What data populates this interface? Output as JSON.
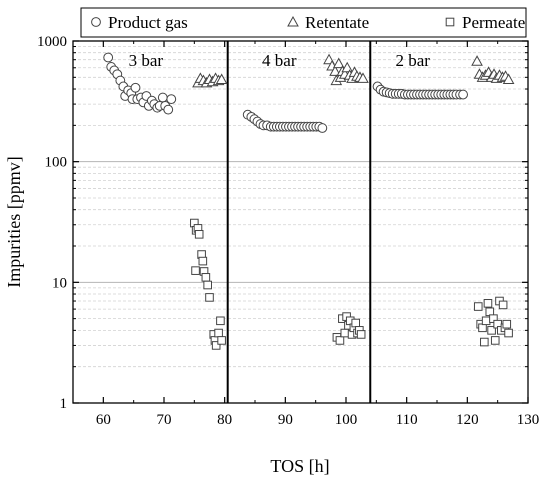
{
  "chart_data": {
    "type": "scatter",
    "xlabel": "TOS [h]",
    "ylabel": "Impurities [ppmv]",
    "xlim": [
      55,
      130
    ],
    "ylim": [
      1,
      1000
    ],
    "y_scale": "log",
    "x_ticks": [
      60,
      70,
      80,
      90,
      100,
      110,
      120,
      130
    ],
    "y_ticks": [
      {
        "value": 1,
        "label": "1"
      },
      {
        "value": 10,
        "label": "10"
      },
      {
        "value": 100,
        "label": "100"
      },
      {
        "value": 1000,
        "label": "1000"
      }
    ],
    "legend": {
      "position": "top",
      "entries": [
        {
          "series": "Product gas",
          "marker": "circle"
        },
        {
          "series": "Retentate",
          "marker": "triangle"
        },
        {
          "series": "Permeate",
          "marker": "square"
        }
      ]
    },
    "grid": "major horizontal lines and dashed minor horizontal lines",
    "separators_x": [
      80.5,
      104
    ],
    "regions": [
      {
        "label": "3 bar",
        "x": 67
      },
      {
        "label": "4 bar",
        "x": 89
      },
      {
        "label": "2 bar",
        "x": 111
      }
    ],
    "series": [
      {
        "name": "Product gas",
        "marker": "circle",
        "points": [
          [
            60.8,
            730
          ],
          [
            61.3,
            610
          ],
          [
            61.8,
            570
          ],
          [
            62.3,
            530
          ],
          [
            62.8,
            470
          ],
          [
            63.3,
            420
          ],
          [
            63.6,
            350
          ],
          [
            64.1,
            390
          ],
          [
            64.6,
            370
          ],
          [
            64.8,
            330
          ],
          [
            65.3,
            410
          ],
          [
            65.6,
            330
          ],
          [
            66.2,
            340
          ],
          [
            66.6,
            310
          ],
          [
            67.1,
            350
          ],
          [
            67.5,
            290
          ],
          [
            68.0,
            320
          ],
          [
            68.4,
            300
          ],
          [
            68.9,
            280
          ],
          [
            69.3,
            290
          ],
          [
            69.8,
            340
          ],
          [
            70.2,
            290
          ],
          [
            70.7,
            270
          ],
          [
            71.2,
            330
          ],
          [
            83.8,
            245
          ],
          [
            84.4,
            235
          ],
          [
            84.9,
            225
          ],
          [
            85.4,
            215
          ],
          [
            85.9,
            205
          ],
          [
            86.4,
            200
          ],
          [
            87.0,
            200
          ],
          [
            87.6,
            195
          ],
          [
            88.1,
            195
          ],
          [
            88.6,
            195
          ],
          [
            89.1,
            195
          ],
          [
            89.6,
            195
          ],
          [
            90.1,
            195
          ],
          [
            90.6,
            195
          ],
          [
            91.1,
            195
          ],
          [
            91.6,
            195
          ],
          [
            92.1,
            195
          ],
          [
            92.6,
            195
          ],
          [
            93.1,
            195
          ],
          [
            93.6,
            195
          ],
          [
            94.1,
            195
          ],
          [
            94.6,
            195
          ],
          [
            95.1,
            195
          ],
          [
            95.6,
            195
          ],
          [
            96.1,
            190
          ],
          [
            105.2,
            420
          ],
          [
            105.7,
            395
          ],
          [
            106.2,
            380
          ],
          [
            106.7,
            375
          ],
          [
            107.2,
            370
          ],
          [
            107.7,
            365
          ],
          [
            108.2,
            365
          ],
          [
            108.7,
            365
          ],
          [
            109.2,
            365
          ],
          [
            109.7,
            360
          ],
          [
            110.2,
            360
          ],
          [
            110.7,
            360
          ],
          [
            111.2,
            360
          ],
          [
            111.7,
            360
          ],
          [
            112.2,
            360
          ],
          [
            112.7,
            360
          ],
          [
            113.2,
            360
          ],
          [
            113.7,
            360
          ],
          [
            114.2,
            360
          ],
          [
            114.7,
            360
          ],
          [
            115.2,
            360
          ],
          [
            115.7,
            360
          ],
          [
            116.2,
            360
          ],
          [
            116.7,
            360
          ],
          [
            117.2,
            360
          ],
          [
            117.7,
            360
          ],
          [
            118.2,
            360
          ],
          [
            118.8,
            360
          ],
          [
            119.3,
            360
          ]
        ]
      },
      {
        "name": "Retentate",
        "marker": "triangle",
        "points": [
          [
            75.6,
            450
          ],
          [
            76.0,
            490
          ],
          [
            76.5,
            470
          ],
          [
            77.0,
            450
          ],
          [
            77.5,
            480
          ],
          [
            78.0,
            460
          ],
          [
            78.5,
            490
          ],
          [
            79.0,
            470
          ],
          [
            79.5,
            480
          ],
          [
            97.2,
            700
          ],
          [
            97.7,
            620
          ],
          [
            98.2,
            560
          ],
          [
            98.4,
            470
          ],
          [
            98.8,
            650
          ],
          [
            99.1,
            500
          ],
          [
            99.4,
            560
          ],
          [
            99.8,
            530
          ],
          [
            100.2,
            600
          ],
          [
            100.6,
            520
          ],
          [
            101.0,
            490
          ],
          [
            101.4,
            550
          ],
          [
            101.8,
            510
          ],
          [
            102.3,
            500
          ],
          [
            102.8,
            490
          ],
          [
            121.6,
            680
          ],
          [
            122.0,
            530
          ],
          [
            122.5,
            500
          ],
          [
            123.0,
            520
          ],
          [
            123.5,
            550
          ],
          [
            124.0,
            500
          ],
          [
            124.4,
            530
          ],
          [
            124.8,
            490
          ],
          [
            125.3,
            520
          ],
          [
            125.8,
            500
          ],
          [
            126.3,
            510
          ],
          [
            126.8,
            480
          ]
        ]
      },
      {
        "name": "Permeate",
        "marker": "square",
        "points": [
          [
            75.0,
            31
          ],
          [
            75.3,
            27
          ],
          [
            75.6,
            28
          ],
          [
            75.8,
            25
          ],
          [
            75.2,
            12.5
          ],
          [
            76.2,
            17
          ],
          [
            76.4,
            15
          ],
          [
            76.6,
            12.3
          ],
          [
            76.9,
            11
          ],
          [
            77.2,
            9.5
          ],
          [
            77.5,
            7.5
          ],
          [
            78.2,
            3.7
          ],
          [
            78.4,
            3.3
          ],
          [
            78.6,
            3.0
          ],
          [
            79.0,
            3.8
          ],
          [
            79.3,
            4.8
          ],
          [
            79.5,
            3.3
          ],
          [
            98.5,
            3.5
          ],
          [
            99.0,
            3.3
          ],
          [
            99.4,
            5.0
          ],
          [
            99.8,
            3.8
          ],
          [
            100.1,
            5.2
          ],
          [
            100.4,
            4.4
          ],
          [
            100.7,
            4.8
          ],
          [
            101.0,
            3.7
          ],
          [
            101.3,
            4.2
          ],
          [
            101.6,
            4.6
          ],
          [
            101.9,
            3.8
          ],
          [
            102.2,
            4.0
          ],
          [
            102.5,
            3.7
          ],
          [
            121.8,
            6.3
          ],
          [
            122.2,
            4.5
          ],
          [
            122.5,
            4.2
          ],
          [
            122.8,
            3.2
          ],
          [
            123.1,
            4.8
          ],
          [
            123.4,
            6.7
          ],
          [
            123.7,
            5.7
          ],
          [
            124.0,
            4.0
          ],
          [
            124.3,
            5.0
          ],
          [
            124.6,
            3.3
          ],
          [
            125.0,
            4.5
          ],
          [
            125.3,
            7.0
          ],
          [
            125.6,
            4.0
          ],
          [
            125.9,
            6.5
          ],
          [
            126.2,
            4.2
          ],
          [
            126.5,
            4.5
          ],
          [
            126.8,
            3.8
          ]
        ]
      }
    ]
  }
}
